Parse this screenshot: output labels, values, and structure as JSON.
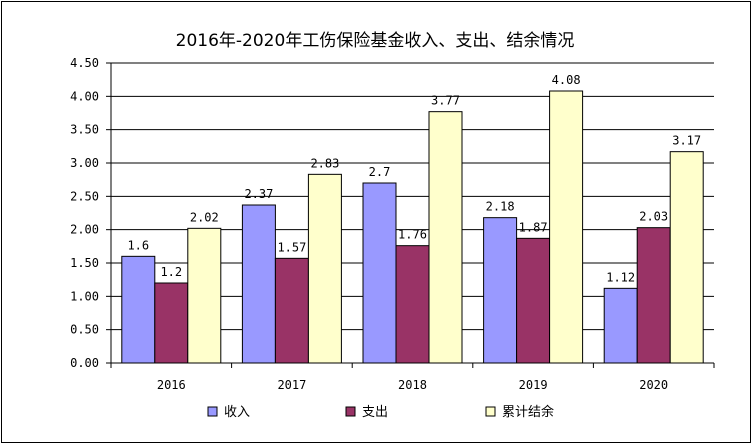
{
  "chart_data": {
    "type": "bar",
    "title": "2016年-2020年工伤保险基金收入、支出、结余情况",
    "xlabel": "",
    "ylabel": "",
    "categories": [
      "2016",
      "2017",
      "2018",
      "2019",
      "2020"
    ],
    "ylim": [
      0,
      4.5
    ],
    "yticks": [
      "0.00",
      "0.50",
      "1.00",
      "1.50",
      "2.00",
      "2.50",
      "3.00",
      "3.50",
      "4.00",
      "4.50"
    ],
    "grid": true,
    "legend_position": "bottom",
    "series": [
      {
        "name": "收入",
        "color": "#9999ff",
        "values": [
          1.6,
          2.37,
          2.7,
          2.18,
          1.12
        ],
        "labels": [
          "1.6",
          "2.37",
          "2.7",
          "2.18",
          "1.12"
        ]
      },
      {
        "name": "支出",
        "color": "#993366",
        "values": [
          1.2,
          1.57,
          1.76,
          1.87,
          2.03
        ],
        "labels": [
          "1.2",
          "1.57",
          "1.76",
          "1.87",
          "2.03"
        ]
      },
      {
        "name": "累计结余",
        "color": "#ffffcc",
        "values": [
          2.02,
          2.83,
          3.77,
          4.08,
          3.17
        ],
        "labels": [
          "2.02",
          "2.83",
          "3.77",
          "4.08",
          "3.17"
        ]
      }
    ]
  }
}
